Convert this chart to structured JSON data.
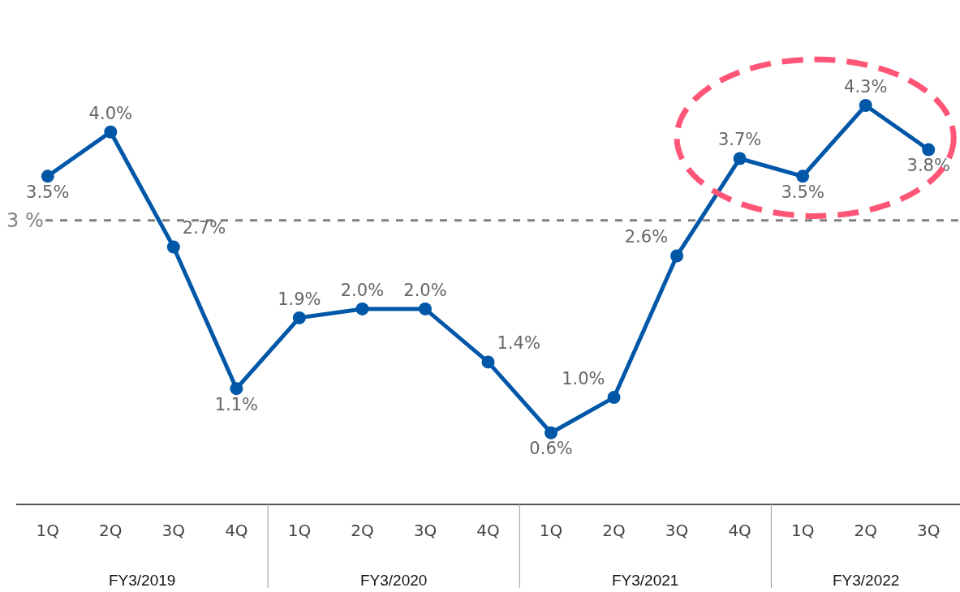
{
  "chart_data": {
    "type": "line",
    "categories": [
      "1Q",
      "2Q",
      "3Q",
      "4Q",
      "1Q",
      "2Q",
      "3Q",
      "4Q",
      "1Q",
      "2Q",
      "3Q",
      "4Q",
      "1Q",
      "2Q",
      "3Q"
    ],
    "series": [
      {
        "color": "#0057a8",
        "values": [
          3.5,
          4.0,
          2.7,
          1.1,
          1.9,
          2.0,
          2.0,
          1.4,
          0.6,
          1.0,
          2.6,
          3.7,
          3.5,
          4.3,
          3.8
        ],
        "value_labels": [
          "3.5%",
          "4.0%",
          "2.7%",
          "1.1%",
          "1.9%",
          "2.0%",
          "2.0%",
          "1.4%",
          "0.6%",
          "1.0%",
          "2.6%",
          "3.7%",
          "3.5%",
          "4.3%",
          "3.8%"
        ]
      }
    ],
    "ref_lines": [
      {
        "axis": "y",
        "value": 3,
        "label": "3 %",
        "color": "#808080",
        "line_style": "dashed"
      }
    ],
    "annotations": [
      "FY3/2019",
      "FY3/2020",
      "FY3/2021",
      "FY3/2022"
    ],
    "marker": "circle",
    "line_style": "solid",
    "grid": false,
    "legend": false
  }
}
